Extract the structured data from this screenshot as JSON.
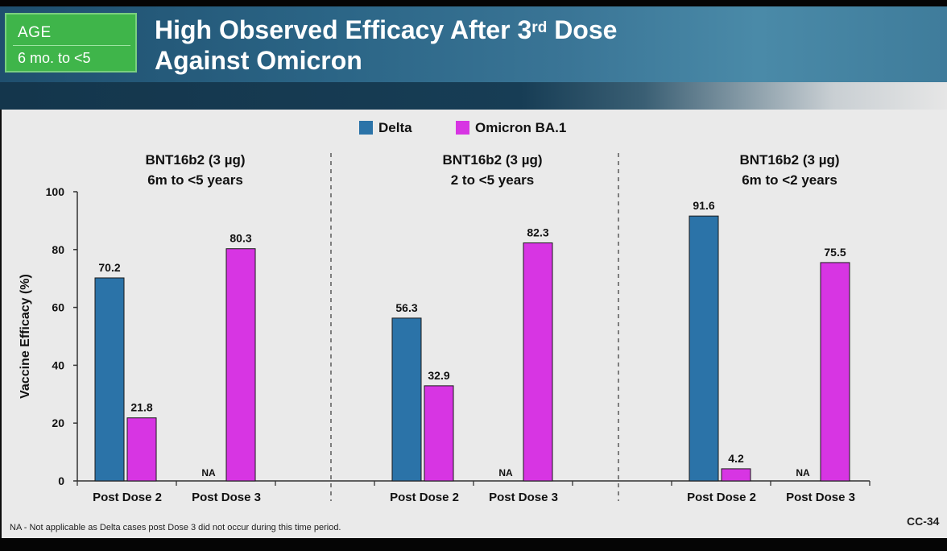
{
  "header": {
    "age_label": "AGE",
    "age_range": "6 mo. to <5",
    "title_line1_pre": "High Observed Efficacy After 3",
    "title_sup": "rd",
    "title_line1_post": " Dose",
    "title_line2": "Against Omicron"
  },
  "colors": {
    "delta": "#2b73a8",
    "omicron": "#d735e3"
  },
  "legend": {
    "delta": "Delta",
    "omicron": "Omicron BA.1"
  },
  "footnote": "NA - Not applicable as Delta cases post Dose 3 did not occur during this time period.",
  "slide_id": "CC-34",
  "chart_data": {
    "type": "bar",
    "ylabel": "Vaccine Efficacy (%)",
    "ylim": [
      0,
      100
    ],
    "yticks": [
      0,
      20,
      40,
      60,
      80,
      100
    ],
    "categories": [
      "Post Dose 2",
      "Post Dose 3"
    ],
    "series_names": [
      "Delta",
      "Omicron BA.1"
    ],
    "missing_label": "NA",
    "panels": [
      {
        "title_line1": "BNT16b2 (3 µg)",
        "title_line2": "6m to <5 years",
        "values": {
          "Delta": [
            70.2,
            null
          ],
          "Omicron BA.1": [
            21.8,
            80.3
          ]
        }
      },
      {
        "title_line1": "BNT16b2 (3 µg)",
        "title_line2": "2 to <5 years",
        "values": {
          "Delta": [
            56.3,
            null
          ],
          "Omicron BA.1": [
            32.9,
            82.3
          ]
        }
      },
      {
        "title_line1": "BNT16b2 (3 µg)",
        "title_line2": "6m to <2 years",
        "values": {
          "Delta": [
            91.6,
            null
          ],
          "Omicron BA.1": [
            4.2,
            75.5
          ]
        }
      }
    ]
  }
}
